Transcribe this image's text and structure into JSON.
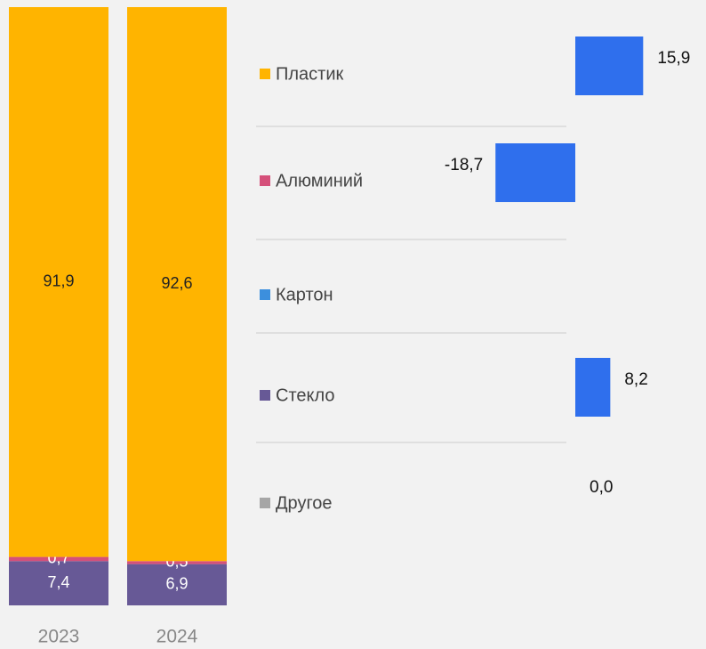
{
  "chart_data": [
    {
      "type": "stacked_bar",
      "categories": [
        "2023",
        "2024"
      ],
      "series": [
        {
          "name": "Пластик",
          "color": "#FFB400",
          "values": [
            91.9,
            92.6
          ],
          "value_labels": [
            "91,9",
            "92,6"
          ]
        },
        {
          "name": "Алюминий",
          "color": "#D5507A",
          "values": [
            0.7,
            0.5
          ],
          "value_labels": [
            "0,7",
            "0,5"
          ]
        },
        {
          "name": "Картон",
          "color": "#3C8FDD",
          "values": [
            0,
            0
          ]
        },
        {
          "name": "Стекло",
          "color": "#675996",
          "values": [
            7.4,
            6.9
          ],
          "value_labels": [
            "7,4",
            "6,9"
          ]
        },
        {
          "name": "Другое",
          "color": "#A6A6A6",
          "values": [
            0,
            0
          ]
        }
      ],
      "ylim": [
        0,
        100
      ]
    },
    {
      "type": "hbar",
      "values": [
        15.9,
        -18.7,
        null,
        8.2,
        0.0
      ],
      "value_labels": [
        "15,9",
        "-18,7",
        null,
        "8,2",
        "0,0"
      ],
      "color": "#2F6FED",
      "xlim": [
        -25,
        30
      ]
    }
  ]
}
